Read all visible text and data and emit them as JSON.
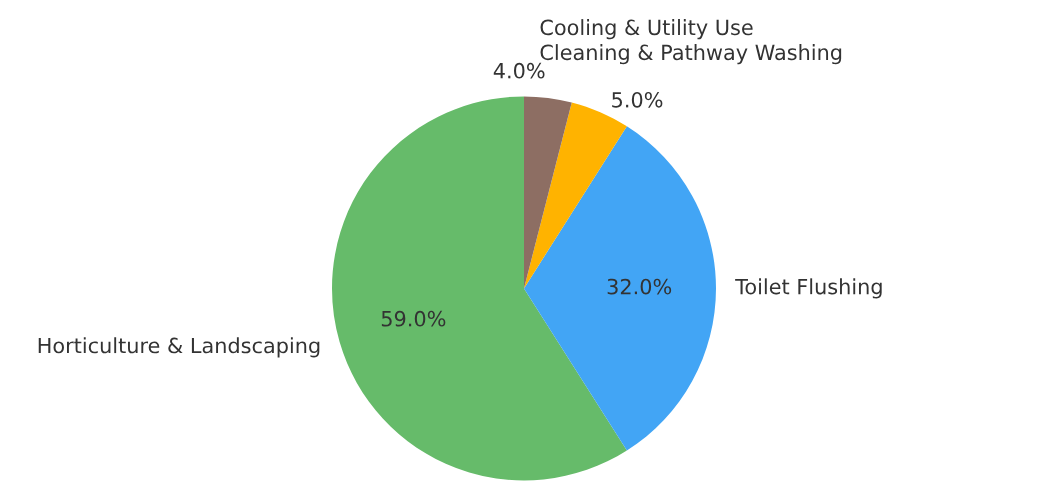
{
  "chart_data": {
    "type": "pie",
    "categories": [
      "Horticulture & Landscaping",
      "Toilet Flushing",
      "Cleaning & Pathway Washing",
      "Cooling & Utility Use"
    ],
    "values": [
      59,
      32,
      5,
      4
    ],
    "colors": [
      "#66bb6a",
      "#42a5f5",
      "#ffb300",
      "#8d6e63"
    ],
    "value_labels": [
      "59.0%",
      "32.0%",
      "5.0%",
      "4.0%"
    ],
    "legend": false
  }
}
